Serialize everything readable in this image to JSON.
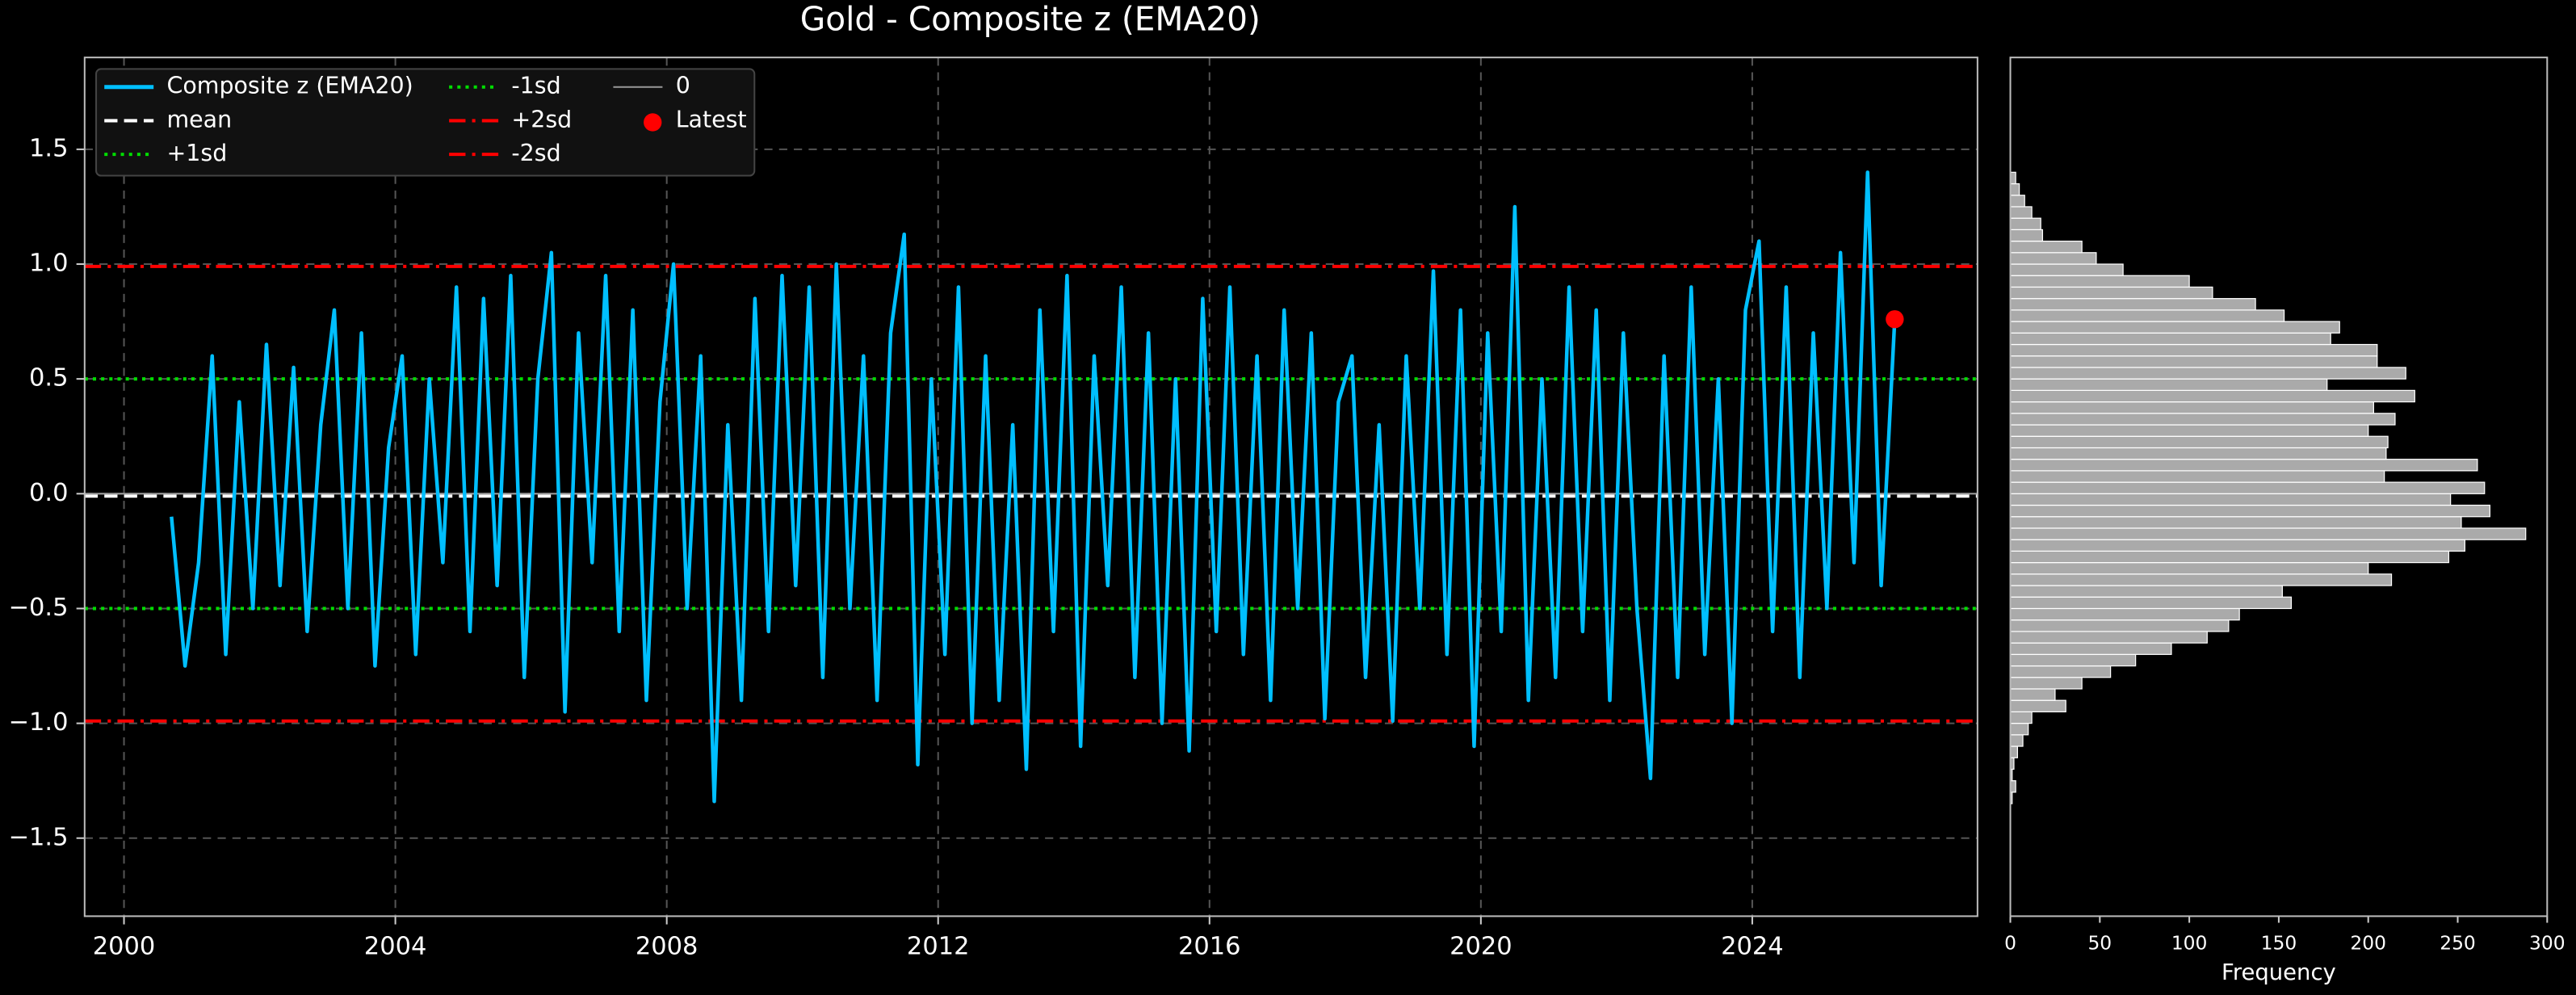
{
  "chart_data": [
    {
      "type": "line",
      "title": "Gold - Composite z (EMA20)",
      "x": [
        2000.7,
        2000.9,
        2001.1,
        2001.3,
        2001.5,
        2001.7,
        2001.9,
        2002.1,
        2002.3,
        2002.5,
        2002.7,
        2002.9,
        2003.1,
        2003.3,
        2003.5,
        2003.7,
        2003.9,
        2004.1,
        2004.3,
        2004.5,
        2004.7,
        2004.9,
        2005.1,
        2005.3,
        2005.5,
        2005.7,
        2005.9,
        2006.1,
        2006.3,
        2006.5,
        2006.7,
        2006.9,
        2007.1,
        2007.3,
        2007.5,
        2007.7,
        2007.9,
        2008.1,
        2008.3,
        2008.5,
        2008.7,
        2008.9,
        2009.1,
        2009.3,
        2009.5,
        2009.7,
        2009.9,
        2010.1,
        2010.3,
        2010.5,
        2010.7,
        2010.9,
        2011.1,
        2011.3,
        2011.5,
        2011.7,
        2011.9,
        2012.1,
        2012.3,
        2012.5,
        2012.7,
        2012.9,
        2013.1,
        2013.3,
        2013.5,
        2013.7,
        2013.9,
        2014.1,
        2014.3,
        2014.5,
        2014.7,
        2014.9,
        2015.1,
        2015.3,
        2015.5,
        2015.7,
        2015.9,
        2016.1,
        2016.3,
        2016.5,
        2016.7,
        2016.9,
        2017.1,
        2017.3,
        2017.5,
        2017.7,
        2017.9,
        2018.1,
        2018.3,
        2018.5,
        2018.7,
        2018.9,
        2019.1,
        2019.3,
        2019.5,
        2019.7,
        2019.9,
        2020.1,
        2020.3,
        2020.5,
        2020.7,
        2020.9,
        2021.1,
        2021.3,
        2021.5,
        2021.7,
        2021.9,
        2022.1,
        2022.3,
        2022.5,
        2022.7,
        2022.9,
        2023.1,
        2023.3,
        2023.5,
        2023.7,
        2023.9,
        2024.1,
        2024.3,
        2024.5,
        2024.7,
        2024.9,
        2025.1,
        2025.3,
        2025.5,
        2025.7,
        2025.9,
        2026.1
      ],
      "series": [
        {
          "name": "Composite z (EMA20)",
          "color": "#00bfff",
          "values": [
            -0.1,
            -0.75,
            -0.3,
            0.6,
            -0.7,
            0.4,
            -0.5,
            0.65,
            -0.4,
            0.55,
            -0.6,
            0.3,
            0.8,
            -0.5,
            0.7,
            -0.75,
            0.2,
            0.6,
            -0.7,
            0.5,
            -0.3,
            0.9,
            -0.6,
            0.85,
            -0.4,
            0.95,
            -0.8,
            0.5,
            1.05,
            -0.95,
            0.7,
            -0.3,
            0.95,
            -0.6,
            0.8,
            -0.9,
            0.4,
            1.0,
            -0.5,
            0.6,
            -1.34,
            0.3,
            -0.9,
            0.85,
            -0.6,
            0.95,
            -0.4,
            0.9,
            -0.8,
            1.0,
            -0.5,
            0.6,
            -0.9,
            0.7,
            1.13,
            -1.18,
            0.5,
            -0.7,
            0.9,
            -1.0,
            0.6,
            -0.9,
            0.3,
            -1.2,
            0.8,
            -0.6,
            0.95,
            -1.1,
            0.6,
            -0.4,
            0.9,
            -0.8,
            0.7,
            -1.0,
            0.5,
            -1.12,
            0.85,
            -0.6,
            0.9,
            -0.7,
            0.6,
            -0.9,
            0.8,
            -0.5,
            0.7,
            -0.98,
            0.4,
            0.6,
            -0.8,
            0.3,
            -0.99,
            0.6,
            -0.5,
            0.97,
            -0.7,
            0.8,
            -1.1,
            0.7,
            -0.6,
            1.25,
            -0.9,
            0.5,
            -0.8,
            0.9,
            -0.6,
            0.8,
            -0.9,
            0.7,
            -0.5,
            -1.24,
            0.6,
            -0.8,
            0.9,
            -0.7,
            0.5,
            -1.0,
            0.8,
            1.1,
            -0.6,
            0.9,
            -0.8,
            0.7,
            -0.5,
            1.05,
            -0.3,
            1.4,
            -0.4,
            0.76
          ]
        }
      ],
      "reference_lines": [
        {
          "name": "mean",
          "value": -0.01,
          "color": "#ffffff",
          "style": "dashed"
        },
        {
          "name": "+1sd",
          "value": 0.5,
          "color": "#00dd00",
          "style": "dotted"
        },
        {
          "name": "-1sd",
          "value": -0.5,
          "color": "#00dd00",
          "style": "dotted"
        },
        {
          "name": "+2sd",
          "value": 0.99,
          "color": "#ff0000",
          "style": "dashdot"
        },
        {
          "name": "-2sd",
          "value": -0.99,
          "color": "#ff0000",
          "style": "dashdot"
        },
        {
          "name": "0",
          "value": 0,
          "color": "#999999",
          "style": "solid"
        }
      ],
      "latest": {
        "name": "Latest",
        "x": 2026.1,
        "value": 0.76,
        "color": "#ff0000"
      },
      "xlim": [
        1999.42,
        2027.32
      ],
      "xticks": [
        2000,
        2004,
        2008,
        2012,
        2016,
        2020,
        2024
      ],
      "ylim": [
        -1.84,
        1.9
      ],
      "yticks": [
        {
          "value": -1.5,
          "label": "−1.5"
        },
        {
          "value": -1,
          "label": "−1.0"
        },
        {
          "value": -0.5,
          "label": "−0.5"
        },
        {
          "value": 0,
          "label": "0.0"
        },
        0.5,
        {
          "value": 1,
          "label": "1.0"
        },
        1.5
      ],
      "grid": true,
      "legend": "upper left"
    },
    {
      "type": "histogram",
      "orientation": "horizontal",
      "color": "#aaaaaa",
      "xlabel": "Frequency",
      "bins": [
        -1.35,
        -1.3,
        -1.25,
        -1.2,
        -1.15,
        -1.1,
        -1.05,
        -1.0,
        -0.95,
        -0.9,
        -0.85,
        -0.8,
        -0.75,
        -0.7,
        -0.65,
        -0.6,
        -0.55,
        -0.5,
        -0.45,
        -0.4,
        -0.35,
        -0.3,
        -0.25,
        -0.2,
        -0.15,
        -0.1,
        -0.05,
        0,
        0.05,
        0.1,
        0.15,
        0.2,
        0.25,
        0.3,
        0.35,
        0.4,
        0.45,
        0.5,
        0.55,
        0.6,
        0.65,
        0.7,
        0.75,
        0.8,
        0.85,
        0.9,
        0.95,
        1.0,
        1.05,
        1.1,
        1.15,
        1.2,
        1.25,
        1.3,
        1.35,
        1.4
      ],
      "counts": [
        1,
        3,
        1,
        2,
        4,
        7,
        10,
        12,
        31,
        25,
        40,
        56,
        70,
        90,
        110,
        122,
        128,
        157,
        152,
        213,
        200,
        245,
        254,
        288,
        252,
        268,
        246,
        265,
        209,
        261,
        210,
        211,
        200,
        215,
        203,
        226,
        177,
        221,
        205,
        205,
        179,
        184,
        153,
        137,
        113,
        100,
        63,
        48,
        40,
        18,
        17,
        12,
        8,
        5,
        3
      ],
      "xlim": [
        0,
        300
      ],
      "xticks": [
        0,
        50,
        100,
        150,
        200,
        250,
        300
      ],
      "ylim": [
        -1.84,
        1.9
      ]
    }
  ]
}
